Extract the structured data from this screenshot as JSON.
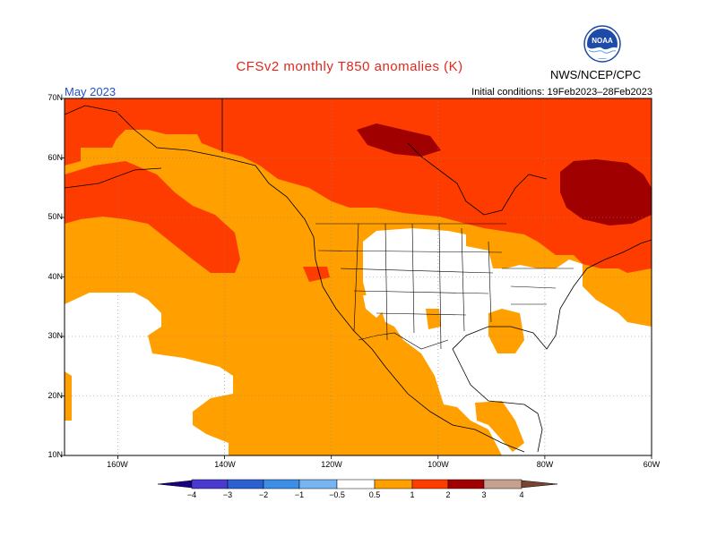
{
  "header": {
    "title": "CFSv2  monthly  T850  anomalies  (K)",
    "month": "May 2023",
    "initial_conditions": "Initial conditions: 19Feb2023–28Feb2023",
    "agency": "NWS/NCEP/CPC",
    "logo_text": "NOAA"
  },
  "map": {
    "lat_labels": [
      "70N",
      "60N",
      "50N",
      "40N",
      "30N",
      "20N",
      "10N"
    ],
    "lon_labels": [
      "160W",
      "140W",
      "120W",
      "100W",
      "80W",
      "60W"
    ],
    "lon_range": [
      -170,
      -60
    ],
    "lat_range": [
      10,
      70
    ]
  },
  "legend": {
    "tick_labels": [
      "−4",
      "−3",
      "−2",
      "−1",
      "−0.5",
      "0.5",
      "1",
      "2",
      "3",
      "4"
    ],
    "colors": {
      "below_-4": "#1a0080",
      "-4_-3": "#4a3ad0",
      "-3_-2": "#2a60d0",
      "-2_-1": "#3c8ee6",
      "-1_-0.5": "#78b4f2",
      "-0.5_0.5": "#ffffff",
      "0.5_1": "#ff9f00",
      "1_2": "#ff3c00",
      "2_3": "#a00000",
      "3_4": "#c8a090",
      "above_4": "#7a4430"
    }
  }
}
